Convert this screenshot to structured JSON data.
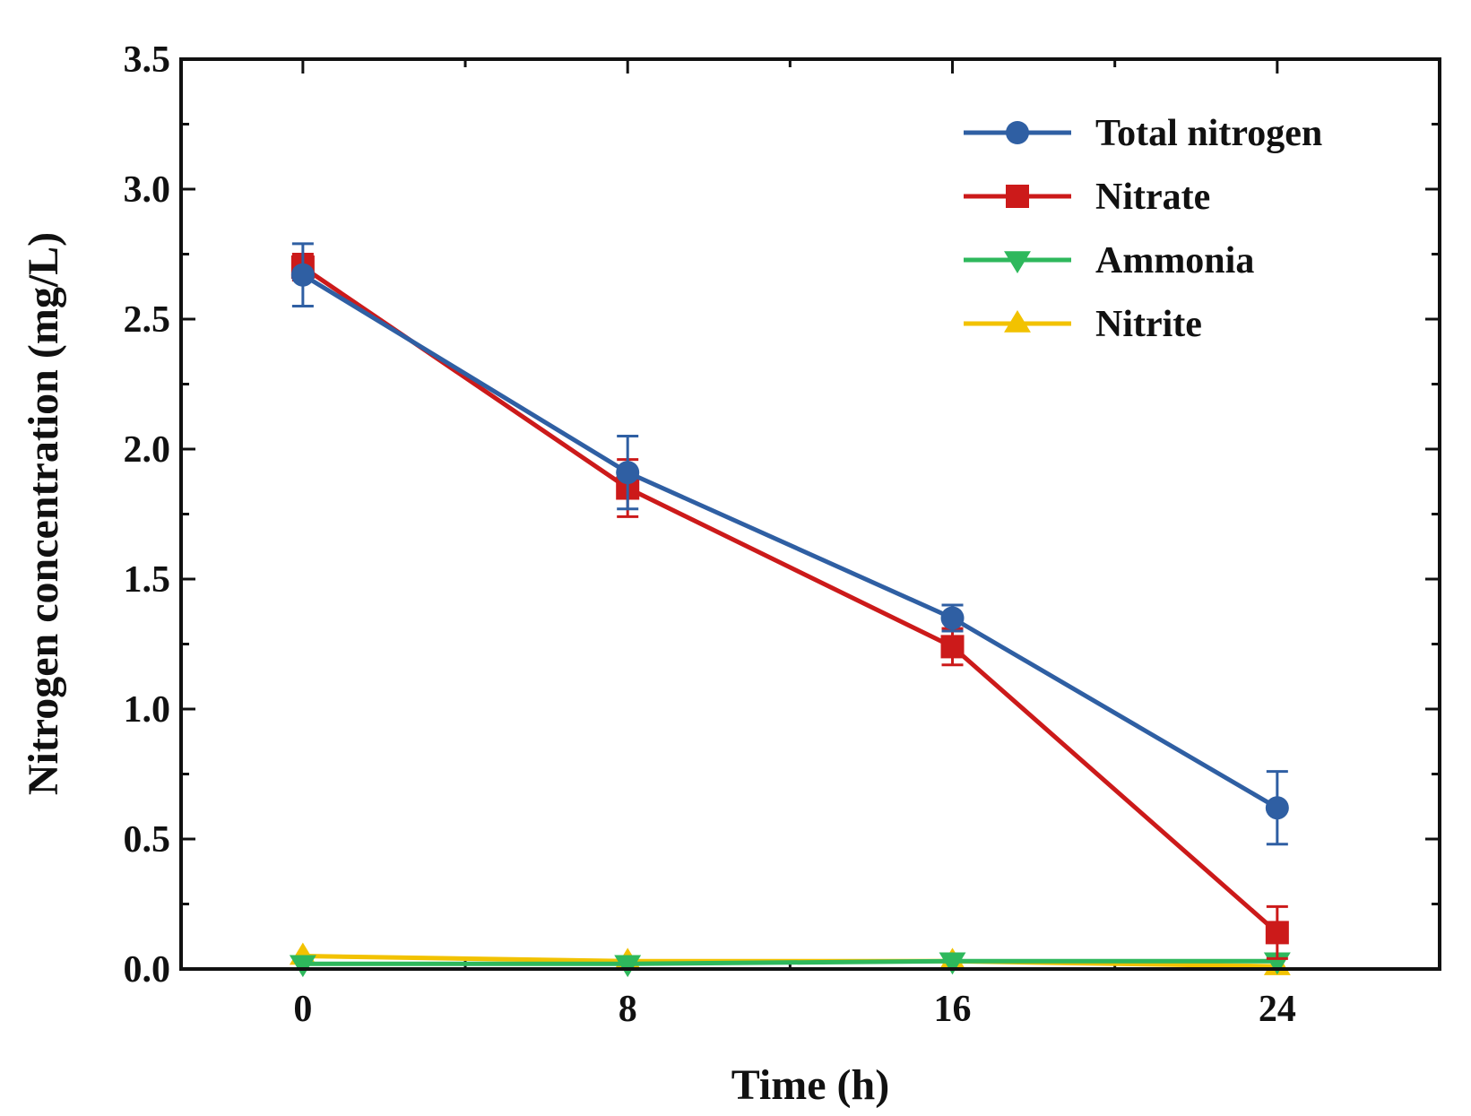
{
  "chart_data": {
    "type": "line",
    "title": "",
    "xlabel": "Time (h)",
    "ylabel": "Nitrogen concentration (mg/L)",
    "x": [
      0,
      8,
      16,
      24
    ],
    "xlim": [
      -3,
      28
    ],
    "ylim": [
      0,
      3.5
    ],
    "xticks": [
      0,
      8,
      16,
      24
    ],
    "xtick_labels": [
      "0",
      "8",
      "16",
      "24"
    ],
    "yticks": [
      0,
      0.5,
      1.0,
      1.5,
      2.0,
      2.5,
      3.0,
      3.5
    ],
    "ytick_labels": [
      "0.0",
      "0.5",
      "1.0",
      "1.5",
      "2.0",
      "2.5",
      "3.0",
      "3.5"
    ],
    "grid": false,
    "legend_position": "top-right",
    "series": [
      {
        "name": "Total nitrogen",
        "color": "#2f5fa3",
        "marker": "circle",
        "values": [
          2.67,
          1.91,
          1.35,
          0.62
        ],
        "errors": [
          0.12,
          0.14,
          0.05,
          0.14
        ]
      },
      {
        "name": "Nitrate",
        "color": "#cc1a1a",
        "marker": "square",
        "values": [
          2.7,
          1.85,
          1.24,
          0.14
        ],
        "errors": [
          0.05,
          0.11,
          0.07,
          0.1
        ]
      },
      {
        "name": "Ammonia",
        "color": "#2eb85c",
        "marker": "triangle-down",
        "values": [
          0.02,
          0.02,
          0.03,
          0.03
        ],
        "errors": [
          0,
          0,
          0,
          0
        ]
      },
      {
        "name": "Nitrite",
        "color": "#f2c200",
        "marker": "triangle-up",
        "values": [
          0.05,
          0.03,
          0.03,
          0.01
        ],
        "errors": [
          0,
          0,
          0,
          0
        ]
      }
    ]
  }
}
